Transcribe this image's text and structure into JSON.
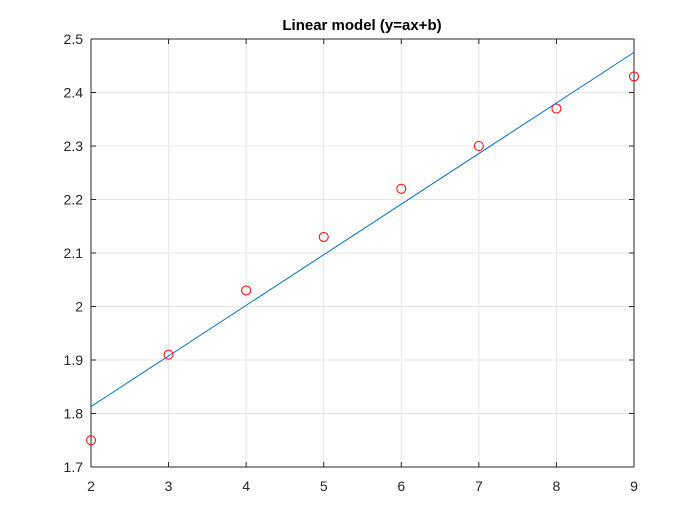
{
  "chart_data": {
    "type": "scatter",
    "title": "Linear model (y=ax+b)",
    "xlabel": "",
    "ylabel": "",
    "xlim": [
      2,
      9
    ],
    "ylim": [
      1.7,
      2.5
    ],
    "x_ticks": [
      2,
      3,
      4,
      5,
      6,
      7,
      8,
      9
    ],
    "x_tick_labels": [
      "2",
      "3",
      "4",
      "5",
      "6",
      "7",
      "8",
      "9"
    ],
    "y_ticks": [
      1.7,
      1.8,
      1.9,
      2.0,
      2.1,
      2.2,
      2.3,
      2.4,
      2.5
    ],
    "y_tick_labels": [
      "1.7",
      "1.8",
      "1.9",
      "2",
      "2.1",
      "2.2",
      "2.3",
      "2.4",
      "2.5"
    ],
    "grid": true,
    "series": [
      {
        "type": "scatter",
        "marker": "circle-open",
        "color": "#ff0000",
        "x": [
          2,
          3,
          4,
          5,
          6,
          7,
          8,
          9
        ],
        "y": [
          1.75,
          1.91,
          2.03,
          2.13,
          2.22,
          2.3,
          2.37,
          2.43
        ]
      },
      {
        "type": "line",
        "color": "#0072bd",
        "x": [
          2,
          9
        ],
        "y": [
          1.813,
          2.475
        ]
      }
    ]
  }
}
